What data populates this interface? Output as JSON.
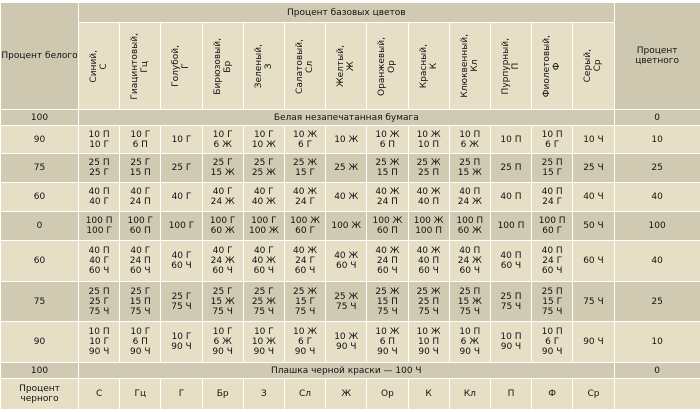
{
  "header": {
    "white": "Процент белого",
    "base": "Процент базовых цветов",
    "colored": "Процент цветного",
    "black": "Процент черного"
  },
  "columns": [
    {
      "name": "Синий,",
      "code": "С"
    },
    {
      "name": "Гиацинтовый,",
      "code": "Гц"
    },
    {
      "name": "Голубой,",
      "code": "Г"
    },
    {
      "name": "Бирюзовый,",
      "code": "Бр"
    },
    {
      "name": "Зеленый,",
      "code": "З"
    },
    {
      "name": "Салатовый,",
      "code": "Сл"
    },
    {
      "name": "Желтый,",
      "code": "Ж"
    },
    {
      "name": "Оранжевый,",
      "code": "Ор"
    },
    {
      "name": "Красный,",
      "code": "К"
    },
    {
      "name": "Клюквенный,",
      "code": "Кл"
    },
    {
      "name": "Пурпурный,",
      "code": "П"
    },
    {
      "name": "Фиолетовый,",
      "code": "Ф"
    },
    {
      "name": "Серый,",
      "code": "Ср"
    }
  ],
  "rows": [
    {
      "white": "100",
      "span": "Белая незапечатанная бумага",
      "colored": "0",
      "shade": "dark"
    },
    {
      "white": "90",
      "colored": "10",
      "shade": "lite",
      "cells": [
        [
          "10 П",
          "10 Г"
        ],
        [
          "10 Г",
          "6 П"
        ],
        [
          "10 Г"
        ],
        [
          "10 Г",
          "6 Ж"
        ],
        [
          "10 Г",
          "10 Ж"
        ],
        [
          "10 Ж",
          "6 Г"
        ],
        [
          "10 Ж"
        ],
        [
          "10 Ж",
          "6 П"
        ],
        [
          "10 Ж",
          "10 П"
        ],
        [
          "10 П",
          "6 Ж"
        ],
        [
          "10 П"
        ],
        [
          "10 П",
          "6 Г"
        ],
        [
          "10 Ч"
        ]
      ]
    },
    {
      "white": "75",
      "colored": "25",
      "shade": "dark",
      "cells": [
        [
          "25 П",
          "25 Г"
        ],
        [
          "25 Г",
          "15 П"
        ],
        [
          "25 Г"
        ],
        [
          "25 Г",
          "15 Ж"
        ],
        [
          "25 Г",
          "25 Ж"
        ],
        [
          "25 Ж",
          "15 Г"
        ],
        [
          "25 Ж"
        ],
        [
          "25 Ж",
          "15 П"
        ],
        [
          "25 Ж",
          "25 П"
        ],
        [
          "25 П",
          "15 Ж"
        ],
        [
          "25 П"
        ],
        [
          "25 П",
          "15 Г"
        ],
        [
          "25 Ч"
        ]
      ]
    },
    {
      "white": "60",
      "colored": "40",
      "shade": "lite",
      "cells": [
        [
          "40 П",
          "40 Г"
        ],
        [
          "40 Г",
          "24 П"
        ],
        [
          "40 Г"
        ],
        [
          "40 Г",
          "24 Ж"
        ],
        [
          "40 Г",
          "40 Ж"
        ],
        [
          "40 Ж",
          "24 Г"
        ],
        [
          "40 Ж"
        ],
        [
          "40 Ж",
          "24 П"
        ],
        [
          "40 Ж",
          "40 П"
        ],
        [
          "40 П",
          "24 Ж"
        ],
        [
          "40 П"
        ],
        [
          "40 П",
          "24 Г"
        ],
        [
          "40 Ч"
        ]
      ]
    },
    {
      "white": "0",
      "colored": "100",
      "shade": "dark",
      "cells": [
        [
          "100 П",
          "100 Г"
        ],
        [
          "100 Г",
          "60 П"
        ],
        [
          "100 Г"
        ],
        [
          "100 Г",
          "60 Ж"
        ],
        [
          "100 Г",
          "100 Ж"
        ],
        [
          "100 Ж",
          "60 Г"
        ],
        [
          "100 Ж"
        ],
        [
          "100 Ж",
          "60 П"
        ],
        [
          "100 Ж",
          "100 П"
        ],
        [
          "100 П",
          "60 Ж"
        ],
        [
          "100 П"
        ],
        [
          "100 П",
          "60 Г"
        ],
        [
          "50 Ч"
        ]
      ]
    },
    {
      "white": "60",
      "colored": "40",
      "shade": "lite",
      "cells": [
        [
          "40 П",
          "40 Г",
          "60 Ч"
        ],
        [
          "40 Г",
          "24 П",
          "60 Ч"
        ],
        [
          "40 Г",
          "60 Ч"
        ],
        [
          "40 Г",
          "24 Ж",
          "60 Ч"
        ],
        [
          "40 Г",
          "40 Ж",
          "60 Ч"
        ],
        [
          "40 Ж",
          "24 Г",
          "60 Ч"
        ],
        [
          "40 Ж",
          "60 Ч"
        ],
        [
          "40 Ж",
          "24 П",
          "60 Ч"
        ],
        [
          "40 Ж",
          "40 П",
          "60 Ч"
        ],
        [
          "40 П",
          "24 Ж",
          "60 Ч"
        ],
        [
          "40 П",
          "60 Ч"
        ],
        [
          "40 П",
          "24 Г",
          "60 Ч"
        ],
        [
          "60 Ч"
        ]
      ]
    },
    {
      "white": "75",
      "colored": "25",
      "shade": "dark",
      "cells": [
        [
          "25 П",
          "25 Г",
          "75 Ч"
        ],
        [
          "25 Г",
          "15 П",
          "75 Ч"
        ],
        [
          "25 Г",
          "75 Ч"
        ],
        [
          "25 Г",
          "15 Ж",
          "75 Ч"
        ],
        [
          "25 Г",
          "25 Ж",
          "75 Ч"
        ],
        [
          "25 Ж",
          "15 Г",
          "75 Ч"
        ],
        [
          "25 Ж",
          "75 Ч"
        ],
        [
          "25 Ж",
          "15 П",
          "75 Ч"
        ],
        [
          "25 Ж",
          "25 П",
          "75 Ч"
        ],
        [
          "25 П",
          "15 Ж",
          "75 Ч"
        ],
        [
          "25 П",
          "75 Ч"
        ],
        [
          "25 П",
          "15 Г",
          "75 Ч"
        ],
        [
          "75 Ч"
        ]
      ]
    },
    {
      "white": "90",
      "colored": "10",
      "shade": "lite",
      "cells": [
        [
          "10 П",
          "10 Г",
          "90 Ч"
        ],
        [
          "10 Г",
          "6 П",
          "90 Ч"
        ],
        [
          "10 Г",
          "90 Ч"
        ],
        [
          "10 Г",
          "6 Ж",
          "90 Ч"
        ],
        [
          "10 Г",
          "10 Ж",
          "90 Ч"
        ],
        [
          "10 Ж",
          "6 Г",
          "90 Ч"
        ],
        [
          "10 Ж",
          "90 Ч"
        ],
        [
          "10 Ж",
          "6 П",
          "90 Ч"
        ],
        [
          "10 Ж",
          "10 П",
          "90 Ч"
        ],
        [
          "10 П",
          "6 Ж",
          "90 Ч"
        ],
        [
          "10 П",
          "90 Ч"
        ],
        [
          "10 П",
          "6 Г",
          "90 Ч"
        ],
        [
          "90 Ч"
        ]
      ]
    },
    {
      "white": "100",
      "span": "Плашка черной краски — 100 Ч",
      "colored": "0",
      "shade": "dark"
    }
  ],
  "colors": {
    "light": "#e6dfc6",
    "dark": "#d1cab3",
    "border": "#ffffff"
  }
}
